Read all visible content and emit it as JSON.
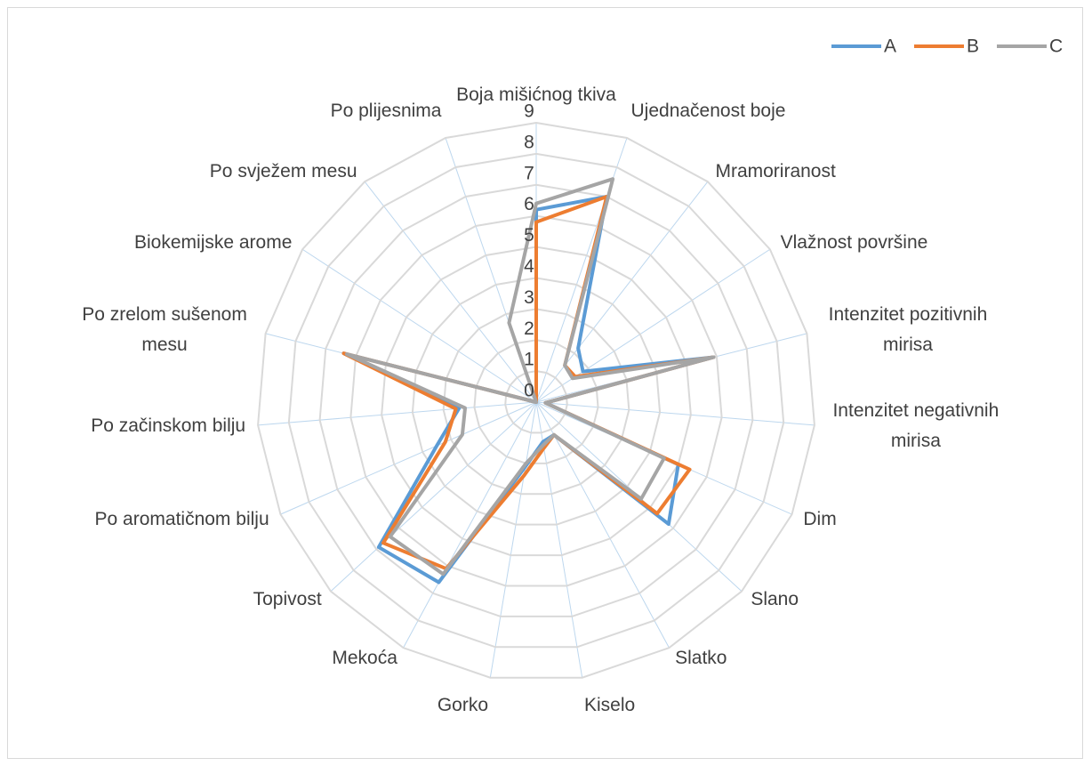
{
  "chart_data": {
    "type": "radar",
    "categories": [
      "Boja mišićnog tkiva",
      "Ujednačenost boje",
      "Mramoriranost",
      "Vlažnost površine",
      "Intenzitet pozitivnih mirisa",
      "Intenzitet negativnih mirisa",
      "Dim",
      "Slano",
      "Slatko",
      "Kiselo",
      "Gorko",
      "Mekoća",
      "Topivost",
      "Po aromatičnom bilju",
      "Po začinskom bilju",
      "Po zrelom sušenom mesu",
      "Biokemijske arome",
      "Po svježem mesu",
      "Po plijesnima"
    ],
    "series": [
      {
        "name": "A",
        "color": "#5b9bd5",
        "values": [
          6.2,
          7.0,
          2.2,
          1.8,
          5.9,
          0.3,
          5.0,
          5.8,
          1.2,
          1.3,
          2.1,
          6.6,
          6.9,
          3.5,
          2.5,
          6.4,
          0,
          0,
          0
        ]
      },
      {
        "name": "B",
        "color": "#ed7d31",
        "values": [
          5.8,
          7.0,
          1.5,
          1.5,
          5.9,
          0.3,
          5.4,
          5.3,
          1.2,
          1.5,
          2.4,
          6.1,
          6.7,
          3.2,
          2.6,
          6.4,
          0,
          0,
          0
        ]
      },
      {
        "name": "C",
        "color": "#a5a5a5",
        "values": [
          6.4,
          7.6,
          1.5,
          1.4,
          5.9,
          0.3,
          4.5,
          4.6,
          1.2,
          1.4,
          2.0,
          6.3,
          6.4,
          2.6,
          2.3,
          6.3,
          0,
          0,
          2.7
        ]
      }
    ],
    "ylim": [
      0,
      9
    ],
    "yticks": [
      0,
      1,
      2,
      3,
      4,
      5,
      6,
      7,
      8,
      9
    ],
    "grid": true,
    "legend": "top-right"
  }
}
